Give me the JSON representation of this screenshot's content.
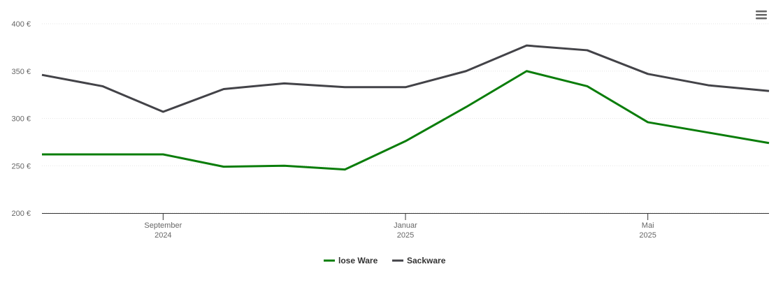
{
  "chart_data": {
    "type": "line",
    "x": [
      "2024-07",
      "2024-08",
      "2024-09",
      "2024-10",
      "2024-11",
      "2024-12",
      "2025-01",
      "2025-02",
      "2025-03",
      "2025-04",
      "2025-05",
      "2025-06",
      "2025-07"
    ],
    "series": [
      {
        "name": "lose Ware",
        "color": "#0a7d0a",
        "values": [
          262,
          262,
          262,
          249,
          250,
          246,
          276,
          312,
          350,
          334,
          296,
          285,
          274
        ]
      },
      {
        "name": "Sackware",
        "color": "#434348",
        "values": [
          346,
          334,
          307,
          331,
          337,
          333,
          333,
          350,
          377,
          372,
          347,
          335,
          329
        ]
      }
    ],
    "xlim": [
      "2024-07",
      "2025-07"
    ],
    "xticks": [
      {
        "value": "2024-09",
        "label": [
          "September",
          "2024"
        ]
      },
      {
        "value": "2025-01",
        "label": [
          "Januar",
          "2025"
        ]
      },
      {
        "value": "2025-05",
        "label": [
          "Mai",
          "2025"
        ]
      }
    ],
    "ylim": [
      200,
      400
    ],
    "yticks": [
      {
        "value": 200,
        "label": "200 €"
      },
      {
        "value": 250,
        "label": "250 €"
      },
      {
        "value": 300,
        "label": "300 €"
      },
      {
        "value": 350,
        "label": "350 €"
      },
      {
        "value": 400,
        "label": "400 €"
      }
    ],
    "grid": true,
    "legend": "bottom"
  }
}
